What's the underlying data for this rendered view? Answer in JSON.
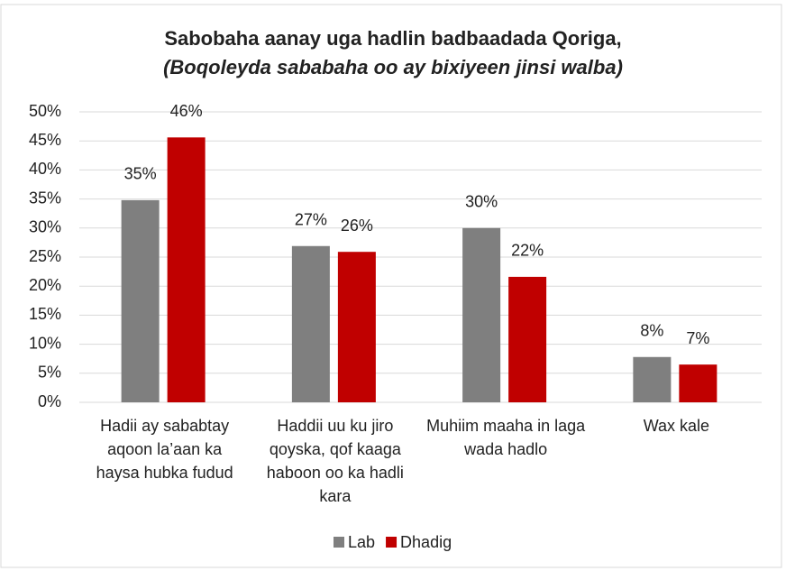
{
  "chart_data": {
    "type": "bar",
    "title": "Sabobaha aanay uga hadlin badbaadada Qoriga,",
    "subtitle": "(Boqoleyda sababaha oo ay bixiyeen jinsi walba)",
    "categories": [
      "Hadii ay sababtay aqoon la’aan ka haysa hubka fudud",
      "Haddii uu ku jiro qoyska, qof kaaga haboon oo ka hadli kara",
      "Muhiim maaha in laga wada hadlo",
      "Wax kale"
    ],
    "series": [
      {
        "name": "Lab",
        "color": "#7f7f7f",
        "values": [
          34.8,
          26.9,
          30,
          7.8
        ],
        "value_labels": [
          "35%",
          "27%",
          "30%",
          "8%"
        ]
      },
      {
        "name": "Dhadig",
        "color": "#c00000",
        "values": [
          45.6,
          25.9,
          21.6,
          6.5
        ],
        "value_labels": [
          "46%",
          "26%",
          "22%",
          "7%"
        ]
      }
    ],
    "ylim": [
      0,
      50
    ],
    "yticks": [
      {
        "value": 0,
        "label": "0%"
      },
      {
        "value": 5,
        "label": "5%"
      },
      {
        "value": 10,
        "label": "10%"
      },
      {
        "value": 15,
        "label": "15%"
      },
      {
        "value": 20,
        "label": "20%"
      },
      {
        "value": 25,
        "label": "25%"
      },
      {
        "value": 30,
        "label": "30%"
      },
      {
        "value": 35,
        "label": "35%"
      },
      {
        "value": 40,
        "label": "40%"
      },
      {
        "value": 45,
        "label": "45%"
      },
      {
        "value": 50,
        "label": "50%"
      }
    ],
    "grid": true,
    "legend": "bottom"
  }
}
